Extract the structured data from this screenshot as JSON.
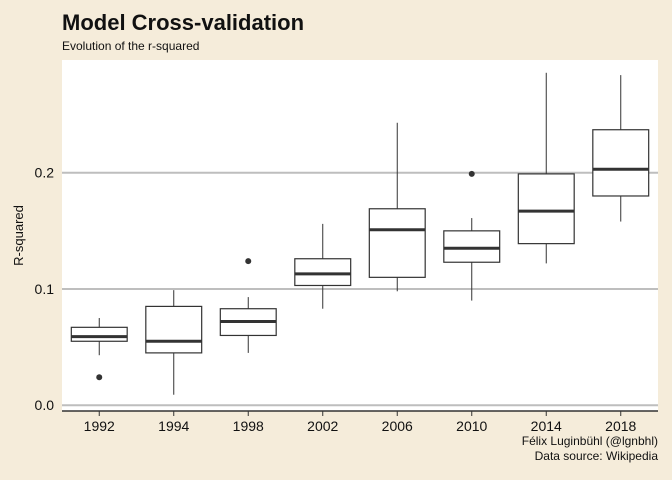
{
  "chart_data": {
    "type": "boxplot",
    "title": "Model Cross-validation",
    "subtitle": "Evolution of the r-squared",
    "xlabel": "",
    "ylabel": "R-squared",
    "caption": [
      "Félix Luginbühl (@lgnbhl)",
      "Data source: Wikipedia"
    ],
    "ylim": [
      -0.005,
      0.297
    ],
    "yticks": [
      0.0,
      0.1,
      0.2
    ],
    "ytick_labels": [
      "0.0",
      "0.1",
      "0.2"
    ],
    "grid": "horizontal-major",
    "categories": [
      "1992",
      "1994",
      "1998",
      "2002",
      "2006",
      "2010",
      "2014",
      "2018"
    ],
    "boxes": [
      {
        "min": 0.043,
        "q1": 0.055,
        "median": 0.059,
        "q3": 0.067,
        "max": 0.075,
        "outliers": [
          0.024
        ]
      },
      {
        "min": 0.009,
        "q1": 0.045,
        "median": 0.055,
        "q3": 0.085,
        "max": 0.099,
        "outliers": []
      },
      {
        "min": 0.045,
        "q1": 0.06,
        "median": 0.072,
        "q3": 0.083,
        "max": 0.093,
        "outliers": [
          0.124
        ]
      },
      {
        "min": 0.083,
        "q1": 0.103,
        "median": 0.113,
        "q3": 0.126,
        "max": 0.156,
        "outliers": []
      },
      {
        "min": 0.098,
        "q1": 0.11,
        "median": 0.151,
        "q3": 0.169,
        "max": 0.243,
        "outliers": []
      },
      {
        "min": 0.09,
        "q1": 0.123,
        "median": 0.135,
        "q3": 0.15,
        "max": 0.161,
        "outliers": [
          0.199
        ]
      },
      {
        "min": 0.122,
        "q1": 0.139,
        "median": 0.167,
        "q3": 0.199,
        "max": 0.286,
        "outliers": []
      },
      {
        "min": 0.158,
        "q1": 0.18,
        "median": 0.203,
        "q3": 0.237,
        "max": 0.284,
        "outliers": []
      }
    ],
    "colors": {
      "background": "#f5ecda",
      "panel": "#ffffff",
      "grid": "#bebebe",
      "box": "#333333"
    }
  }
}
